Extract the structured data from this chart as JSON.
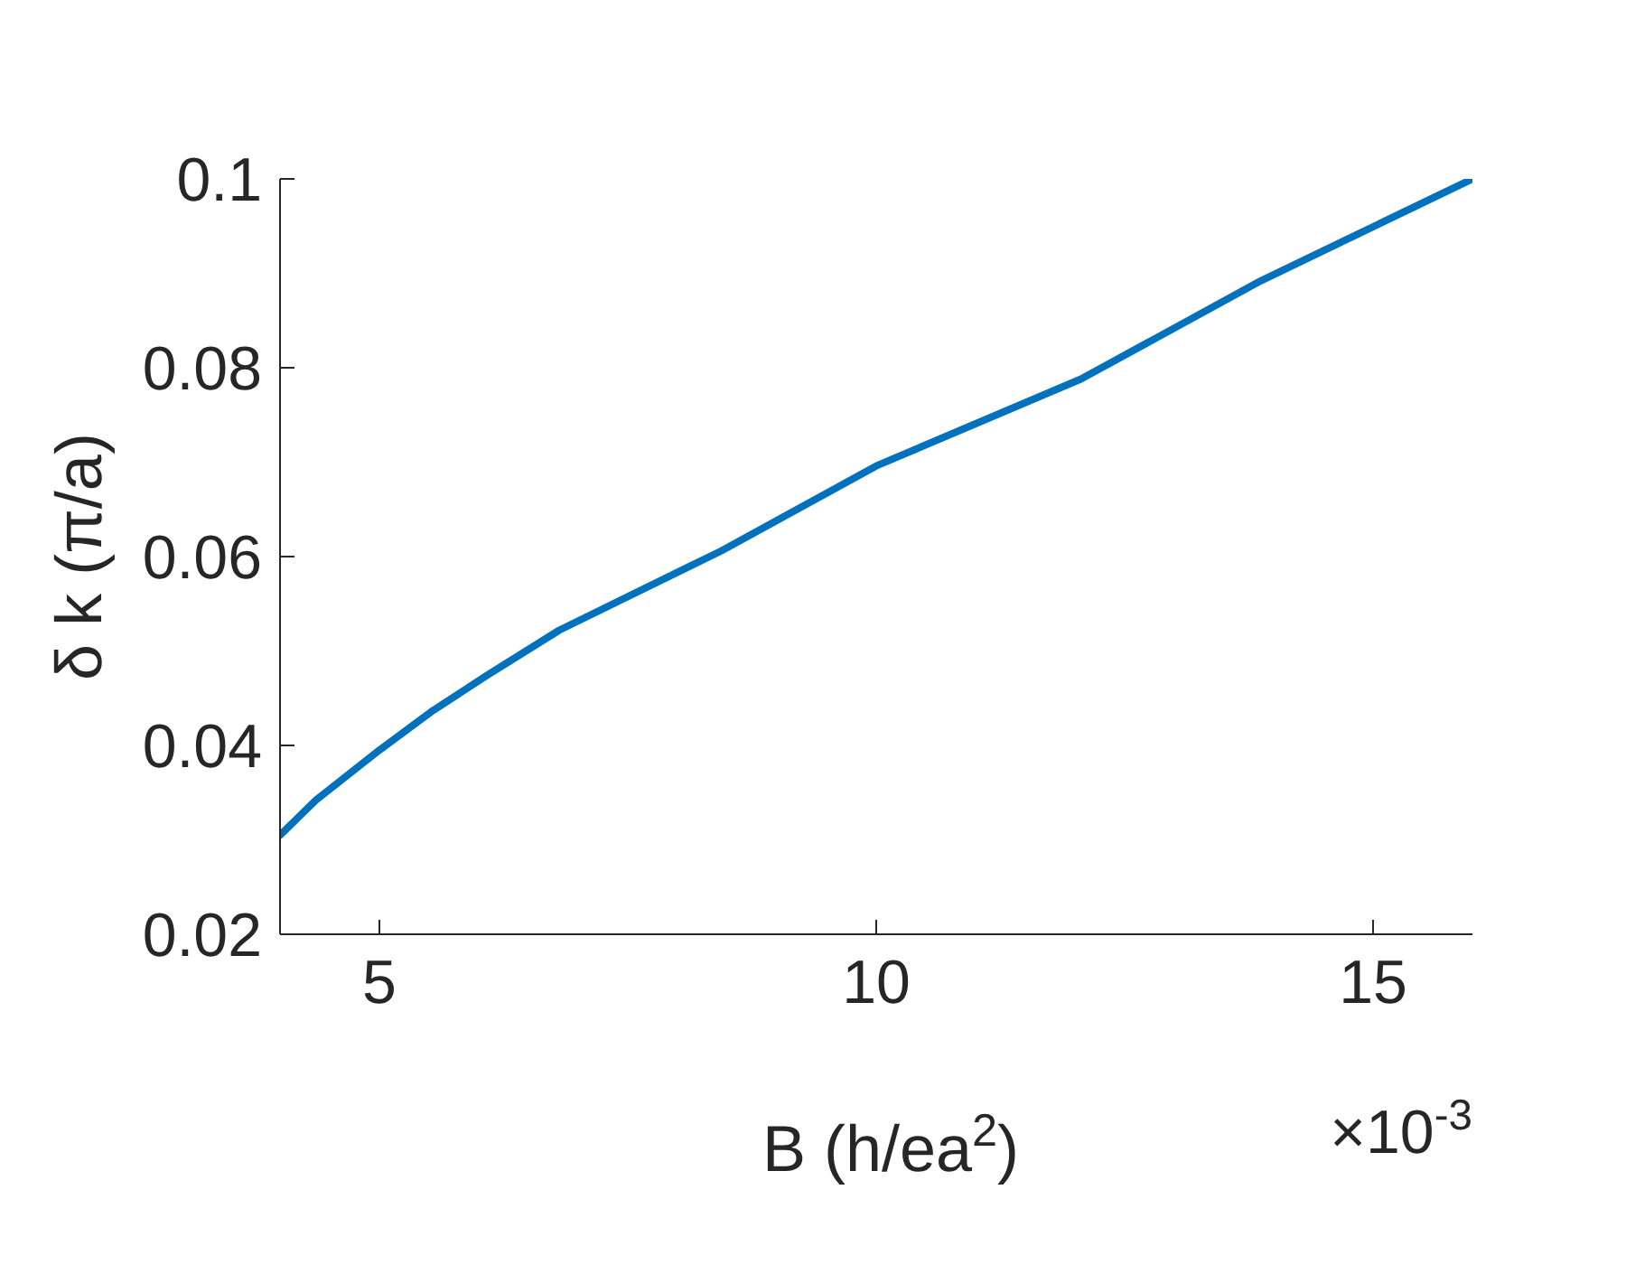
{
  "chart_data": {
    "type": "line",
    "xlabel": "B (h/ea$^{2}$)",
    "ylabel": "δ k (π/a)",
    "annotations": [
      "×10$^{-3}$"
    ],
    "x": [
      4,
      4.36,
      5,
      5.54,
      6.08,
      6.81,
      8.44,
      10,
      12.06,
      13.87,
      16
    ],
    "series": [
      {
        "color": "#0072bd",
        "values": [
          0.0305,
          0.0342,
          0.0395,
          0.0437,
          0.0474,
          0.0522,
          0.0606,
          0.0696,
          0.0788,
          0.0892,
          0.1
        ]
      }
    ],
    "xlim": [
      4,
      16
    ],
    "xticks": [
      5,
      10,
      15
    ],
    "ylim": [
      0.02,
      0.1
    ],
    "yticks": [
      0.02,
      0.04,
      0.06,
      0.08,
      0.1
    ],
    "grid": false,
    "legend": false,
    "marker": "none",
    "line_style": "solid"
  }
}
